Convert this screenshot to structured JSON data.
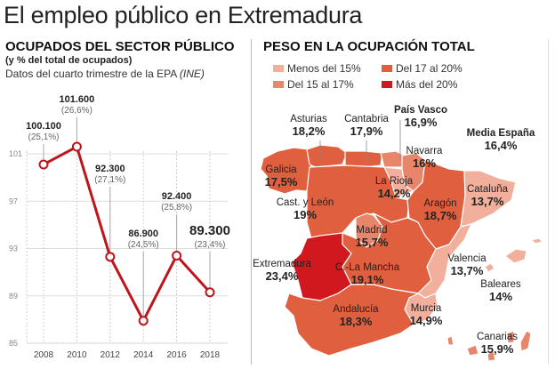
{
  "title": "El empleo público en Extremadura",
  "left": {
    "heading": "OCUPADOS DEL SECTOR PÚBLICO",
    "subheading": "(y % del total de ocupados)",
    "source_prefix": "Datos del cuarto trimestre de la EPA ",
    "source_italic": "(INE)"
  },
  "chart_data": {
    "type": "line",
    "x": [
      "2008",
      "2010",
      "2012",
      "2014",
      "2016",
      "2018"
    ],
    "values": [
      100.1,
      101.6,
      92.3,
      86.9,
      92.4,
      89.3
    ],
    "value_labels": [
      "100.100",
      "101.600",
      "92.300",
      "86.900",
      "92.400",
      "89.300"
    ],
    "pct_labels": [
      "(25,1%)",
      "(26,6%)",
      "(27,1%)",
      "(24,5%)",
      "(25,8%)",
      "(23,4%)"
    ],
    "yticks": [
      "101",
      "97",
      "93",
      "89",
      "85"
    ],
    "ylim": [
      85,
      101
    ],
    "grid": true,
    "color": "#c0141c"
  },
  "map": {
    "heading": "PESO EN LA OCUPACIÓN TOTAL",
    "legend": [
      {
        "label": "Menos del 15%",
        "color": "#f2b09c"
      },
      {
        "label": "Del 15 al 17%",
        "color": "#e8866b"
      },
      {
        "label": "Del 17 al 20%",
        "color": "#e05f3e"
      },
      {
        "label": "Más del 20%",
        "color": "#d0181e"
      }
    ],
    "regions": {
      "asturias": {
        "name": "Asturias",
        "value": "18,2%"
      },
      "cantabria": {
        "name": "Cantabria",
        "value": "17,9%"
      },
      "pais_vasco": {
        "name": "País Vasco",
        "value": "16,9%"
      },
      "media": {
        "name": "Media España",
        "value": "16,4%"
      },
      "navarra": {
        "name": "Navarra",
        "value": "16%"
      },
      "galicia": {
        "name": "Galicia",
        "value": "17,5%"
      },
      "rioja": {
        "name": "La Rioja",
        "value": "14,2%"
      },
      "cataluna": {
        "name": "Cataluña",
        "value": "13,7%"
      },
      "cyl": {
        "name": "Cast. y León",
        "value": "19%"
      },
      "aragon": {
        "name": "Aragón",
        "value": "18,7%"
      },
      "madrid": {
        "name": "Madrid",
        "value": "15,7%"
      },
      "extremadura": {
        "name": "Extremadura",
        "value": "23,4%"
      },
      "clm": {
        "name": "C.-La Mancha",
        "value": "19,1%"
      },
      "valencia": {
        "name": "Valencia",
        "value": "13,7%"
      },
      "baleares": {
        "name": "Baleares",
        "value": "14%"
      },
      "andalucia": {
        "name": "Andalucía",
        "value": "18,3%"
      },
      "murcia": {
        "name": "Murcia",
        "value": "14,9%"
      },
      "canarias": {
        "name": "Canarias",
        "value": "15,9%"
      }
    }
  }
}
